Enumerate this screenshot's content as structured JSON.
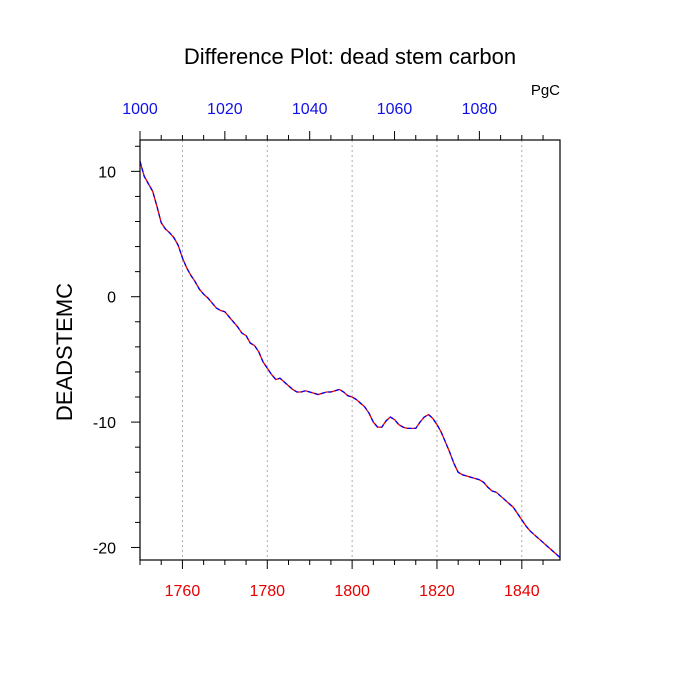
{
  "chart_data": {
    "type": "line",
    "title": "Difference Plot: dead stem carbon",
    "units_label": "PgC",
    "ylabel": "DEADSTEMC",
    "xlim": [
      1750,
      1849
    ],
    "ylim": [
      -21,
      12.5
    ],
    "x_ticks": [
      "1760",
      "1780",
      "1800",
      "1820",
      "1840"
    ],
    "x_tick_values": [
      1760,
      1780,
      1800,
      1820,
      1840
    ],
    "y_ticks": [
      "10",
      "0",
      "-10",
      "-20"
    ],
    "y_tick_values": [
      10,
      0,
      -10,
      -20
    ],
    "top_axis": {
      "xlim": [
        1000,
        1099
      ],
      "ticks": [
        "1000",
        "1020",
        "1040",
        "1060",
        "1080"
      ],
      "tick_values": [
        1000,
        1020,
        1040,
        1060,
        1080
      ]
    },
    "grid": "vertical dotted at major x ticks",
    "series": [
      {
        "style": "dashed",
        "colors": [
          "#0000ff",
          "#e60000"
        ],
        "x": [
          1750,
          1751,
          1752,
          1753,
          1754,
          1755,
          1756,
          1757,
          1758,
          1759,
          1760,
          1761,
          1762,
          1763,
          1764,
          1765,
          1766,
          1767,
          1768,
          1769,
          1770,
          1771,
          1772,
          1773,
          1774,
          1775,
          1776,
          1777,
          1778,
          1779,
          1780,
          1781,
          1782,
          1783,
          1784,
          1785,
          1786,
          1787,
          1788,
          1789,
          1790,
          1791,
          1792,
          1793,
          1794,
          1795,
          1796,
          1797,
          1798,
          1799,
          1800,
          1801,
          1802,
          1803,
          1804,
          1805,
          1806,
          1807,
          1808,
          1809,
          1810,
          1811,
          1812,
          1813,
          1814,
          1815,
          1816,
          1817,
          1818,
          1819,
          1820,
          1821,
          1822,
          1823,
          1824,
          1825,
          1826,
          1827,
          1828,
          1829,
          1830,
          1831,
          1832,
          1833,
          1834,
          1835,
          1836,
          1837,
          1838,
          1839,
          1840,
          1841,
          1842,
          1843,
          1844,
          1845,
          1846,
          1847,
          1848,
          1849
        ],
        "y": [
          10.8,
          9.6,
          9.0,
          8.4,
          7.2,
          5.9,
          5.4,
          5.1,
          4.7,
          4.1,
          3.1,
          2.3,
          1.7,
          1.2,
          0.6,
          0.2,
          -0.1,
          -0.5,
          -0.9,
          -1.1,
          -1.2,
          -1.6,
          -2.0,
          -2.4,
          -2.9,
          -3.1,
          -3.7,
          -3.9,
          -4.4,
          -5.2,
          -5.7,
          -6.2,
          -6.6,
          -6.5,
          -6.8,
          -7.1,
          -7.4,
          -7.6,
          -7.6,
          -7.5,
          -7.6,
          -7.7,
          -7.8,
          -7.7,
          -7.6,
          -7.6,
          -7.5,
          -7.4,
          -7.6,
          -7.9,
          -8.0,
          -8.2,
          -8.5,
          -8.8,
          -9.3,
          -10.0,
          -10.4,
          -10.4,
          -9.9,
          -9.6,
          -9.8,
          -10.2,
          -10.4,
          -10.5,
          -10.5,
          -10.5,
          -10.0,
          -9.6,
          -9.4,
          -9.7,
          -10.2,
          -10.8,
          -11.6,
          -12.4,
          -13.3,
          -14.0,
          -14.2,
          -14.3,
          -14.4,
          -14.5,
          -14.6,
          -14.8,
          -15.2,
          -15.5,
          -15.6,
          -15.9,
          -16.2,
          -16.5,
          -16.8,
          -17.3,
          -17.8,
          -18.3,
          -18.7,
          -19.0,
          -19.3,
          -19.6,
          -19.9,
          -20.2,
          -20.5,
          -20.8
        ]
      }
    ]
  }
}
